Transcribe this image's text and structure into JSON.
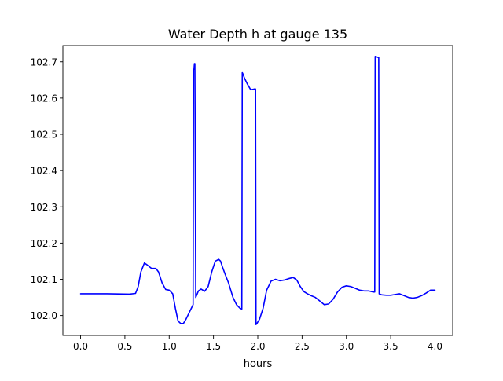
{
  "chart_data": {
    "type": "line",
    "title": "Water Depth h at gauge 135",
    "xlabel": "hours",
    "ylabel": "",
    "xlim": [
      -0.2,
      4.2
    ],
    "ylim": [
      101.945,
      102.745
    ],
    "xticks": [
      0.0,
      0.5,
      1.0,
      1.5,
      2.0,
      2.5,
      3.0,
      3.5,
      4.0
    ],
    "xtick_labels": [
      "0.0",
      "0.5",
      "1.0",
      "1.5",
      "2.0",
      "2.5",
      "3.0",
      "3.5",
      "4.0"
    ],
    "yticks": [
      102.0,
      102.1,
      102.2,
      102.3,
      102.4,
      102.5,
      102.6,
      102.7
    ],
    "ytick_labels": [
      "102.0",
      "102.1",
      "102.2",
      "102.3",
      "102.4",
      "102.5",
      "102.6",
      "102.7"
    ],
    "grid": false,
    "line_color": "#0000ff",
    "series": [
      {
        "x": [
          0.0,
          0.3,
          0.55,
          0.62,
          0.65,
          0.68,
          0.72,
          0.75,
          0.8,
          0.85,
          0.88,
          0.92,
          0.96,
          1.0,
          1.04,
          1.07,
          1.1,
          1.13,
          1.16,
          1.19,
          1.22,
          1.25,
          1.27,
          1.275,
          1.28,
          1.285,
          1.29,
          1.3,
          1.33,
          1.36,
          1.4,
          1.44,
          1.48,
          1.52,
          1.56,
          1.58,
          1.6,
          1.63,
          1.67,
          1.72,
          1.76,
          1.8,
          1.82,
          1.825,
          1.83,
          1.85,
          1.88,
          1.92,
          1.96,
          1.975,
          1.98,
          1.99,
          2.02,
          2.06,
          2.1,
          2.15,
          2.2,
          2.25,
          2.3,
          2.35,
          2.4,
          2.44,
          2.48,
          2.52,
          2.56,
          2.6,
          2.65,
          2.7,
          2.75,
          2.8,
          2.85,
          2.9,
          2.95,
          3.0,
          3.05,
          3.1,
          3.15,
          3.2,
          3.25,
          3.3,
          3.32,
          3.325,
          3.33,
          3.36,
          3.365,
          3.37,
          3.4,
          3.45,
          3.5,
          3.55,
          3.6,
          3.65,
          3.7,
          3.75,
          3.8,
          3.85,
          3.9,
          3.95,
          4.0
        ],
        "y": [
          102.06,
          102.06,
          102.059,
          102.061,
          102.08,
          102.12,
          102.145,
          102.14,
          102.13,
          102.13,
          102.12,
          102.09,
          102.072,
          102.07,
          102.06,
          102.02,
          101.985,
          101.978,
          101.978,
          101.99,
          102.005,
          102.02,
          102.03,
          102.678,
          102.68,
          102.695,
          102.695,
          102.05,
          102.068,
          102.073,
          102.067,
          102.08,
          102.12,
          102.15,
          102.155,
          102.15,
          102.135,
          102.115,
          102.09,
          102.05,
          102.03,
          102.02,
          102.018,
          102.67,
          102.668,
          102.655,
          102.64,
          102.623,
          102.625,
          102.625,
          101.975,
          101.978,
          101.99,
          102.02,
          102.07,
          102.095,
          102.1,
          102.096,
          102.098,
          102.102,
          102.105,
          102.098,
          102.08,
          102.066,
          102.06,
          102.055,
          102.05,
          102.04,
          102.03,
          102.032,
          102.045,
          102.065,
          102.078,
          102.082,
          102.08,
          102.075,
          102.07,
          102.068,
          102.068,
          102.065,
          102.065,
          102.715,
          102.715,
          102.712,
          102.712,
          102.06,
          102.057,
          102.056,
          102.056,
          102.058,
          102.06,
          102.055,
          102.05,
          102.048,
          102.05,
          102.055,
          102.062,
          102.07,
          102.07
        ]
      }
    ]
  }
}
